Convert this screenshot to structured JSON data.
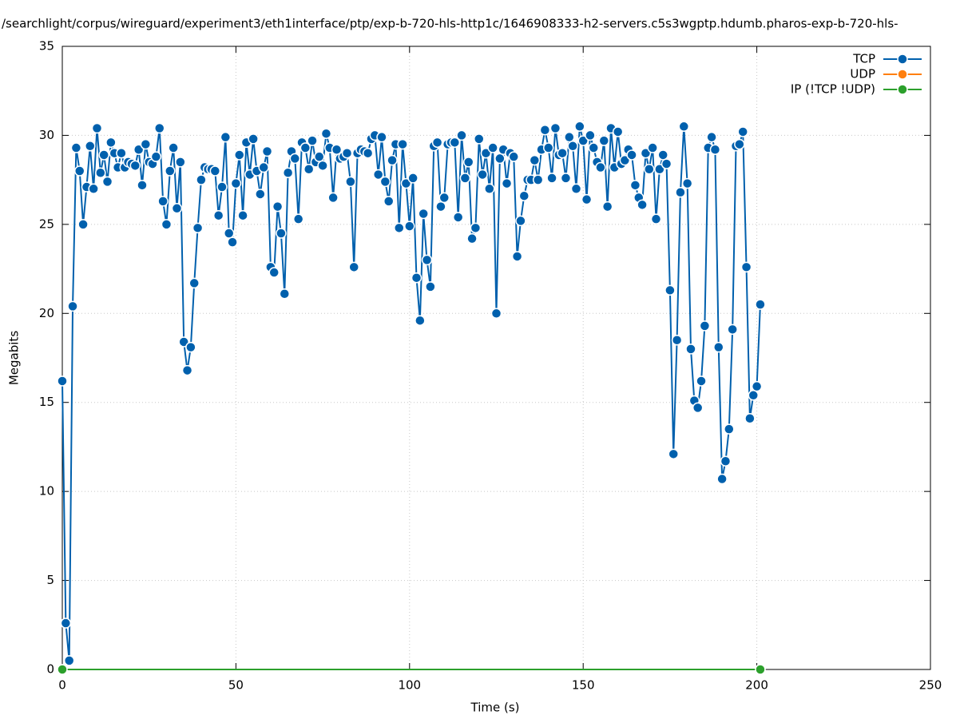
{
  "chart_data": {
    "type": "line",
    "title": "/searchlight/corpus/wireguard/experiment3/eth1interface/ptp/exp-b-720-hls-http1c/1646908333-h2-servers.c5s3wgptp.hdumb.pharos-exp-b-720-hls-",
    "xlabel": "Time (s)",
    "ylabel": "Megabits",
    "xlim": [
      0,
      250
    ],
    "xticks": [
      0,
      50,
      100,
      150,
      200,
      250
    ],
    "ylim": [
      0,
      35
    ],
    "yticks": [
      0,
      5,
      10,
      15,
      20,
      25,
      30,
      35
    ],
    "grid": true,
    "legend": "top-right",
    "series": [
      {
        "name": "TCP",
        "color": "#0060ad",
        "x": [
          0,
          1,
          2,
          3,
          4,
          5,
          6,
          7,
          8,
          9,
          10,
          11,
          12,
          13,
          14,
          15,
          16,
          17,
          18,
          19,
          20,
          21,
          22,
          23,
          24,
          25,
          26,
          27,
          28,
          29,
          30,
          31,
          32,
          33,
          34,
          35,
          36,
          37,
          38,
          39,
          40,
          41,
          42,
          43,
          44,
          45,
          46,
          47,
          48,
          49,
          50,
          51,
          52,
          53,
          54,
          55,
          56,
          57,
          58,
          59,
          60,
          61,
          62,
          63,
          64,
          65,
          66,
          67,
          68,
          69,
          70,
          71,
          72,
          73,
          74,
          75,
          76,
          77,
          78,
          79,
          80,
          81,
          82,
          83,
          84,
          85,
          86,
          87,
          88,
          89,
          90,
          91,
          92,
          93,
          94,
          95,
          96,
          97,
          98,
          99,
          100,
          101,
          102,
          103,
          104,
          105,
          106,
          107,
          108,
          109,
          110,
          111,
          112,
          113,
          114,
          115,
          116,
          117,
          118,
          119,
          120,
          121,
          122,
          123,
          124,
          125,
          126,
          127,
          128,
          129,
          130,
          131,
          132,
          133,
          134,
          135,
          136,
          137,
          138,
          139,
          140,
          141,
          142,
          143,
          144,
          145,
          146,
          147,
          148,
          149,
          150,
          151,
          152,
          153,
          154,
          155,
          156,
          157,
          158,
          159,
          160,
          161,
          162,
          163,
          164,
          165,
          166,
          167,
          168,
          169,
          170,
          171,
          172,
          173,
          174,
          175,
          176,
          177,
          178,
          179,
          180,
          181,
          182,
          183,
          184,
          185,
          186,
          187,
          188,
          189,
          190,
          191,
          192,
          193,
          194,
          195,
          196,
          197,
          198,
          199,
          200,
          201
        ],
        "values": [
          16.2,
          2.6,
          0.5,
          20.4,
          29.3,
          28,
          25,
          27.1,
          29.4,
          27,
          30.4,
          27.9,
          28.9,
          27.4,
          29.6,
          29,
          28.2,
          29,
          28.2,
          28.5,
          28.4,
          28.3,
          29.2,
          27.2,
          29.5,
          28.5,
          28.4,
          28.8,
          30.4,
          26.3,
          25,
          28,
          29.3,
          25.9,
          28.5,
          18.4,
          16.8,
          18.1,
          21.7,
          24.8,
          27.5,
          28.2,
          28.1,
          28.1,
          28,
          25.5,
          27.1,
          29.9,
          24.5,
          24,
          27.3,
          28.9,
          25.5,
          29.6,
          27.8,
          29.8,
          28,
          26.7,
          28.2,
          29.1,
          22.6,
          22.3,
          26,
          24.5,
          21.1,
          27.9,
          29.1,
          28.7,
          25.3,
          29.6,
          29.3,
          28.1,
          29.7,
          28.5,
          28.8,
          28.3,
          30.1,
          29.3,
          26.5,
          29.2,
          28.7,
          28.8,
          29,
          27.4,
          22.6,
          29,
          29.2,
          29.1,
          29,
          29.8,
          30,
          27.8,
          29.9,
          27.4,
          26.3,
          28.6,
          29.5,
          24.8,
          29.5,
          27.3,
          24.9,
          27.6,
          22,
          19.6,
          25.6,
          23,
          21.5,
          29.4,
          29.6,
          26,
          26.5,
          29.5,
          29.6,
          29.6,
          25.4,
          30,
          27.6,
          28.5,
          24.2,
          24.8,
          29.8,
          27.8,
          29,
          27,
          29.3,
          20,
          28.7,
          29.2,
          27.3,
          29,
          28.8,
          23.2,
          25.2,
          26.6,
          27.5,
          27.5,
          28.6,
          27.5,
          29.2,
          30.3,
          29.3,
          27.6,
          30.4,
          28.9,
          29,
          27.6,
          29.9,
          29.4,
          27,
          30.5,
          29.7,
          26.4,
          30,
          29.3,
          28.5,
          28.2,
          29.7,
          26,
          30.4,
          28.2,
          30.2,
          28.4,
          28.6,
          29.2,
          28.9,
          27.2,
          26.5,
          26.1,
          29,
          28.1,
          29.3,
          25.3,
          28.1,
          28.9,
          28.4,
          21.3,
          12.1,
          18.5,
          26.8,
          30.5,
          27.3,
          18,
          15.1,
          14.7,
          16.2,
          19.3,
          29.3,
          29.9,
          29.2,
          18.1,
          10.7,
          11.7,
          13.5,
          19.1,
          29.4,
          29.5,
          30.2,
          22.6,
          14.1,
          15.4,
          15.9,
          20.5
        ]
      },
      {
        "name": "UDP",
        "color": "#ff7f0e",
        "x": [
          0,
          201
        ],
        "values": [
          0,
          0
        ]
      },
      {
        "name": "IP (!TCP  !UDP)",
        "color": "#2ca02c",
        "x": [
          0,
          201
        ],
        "values": [
          0,
          0
        ]
      }
    ]
  }
}
